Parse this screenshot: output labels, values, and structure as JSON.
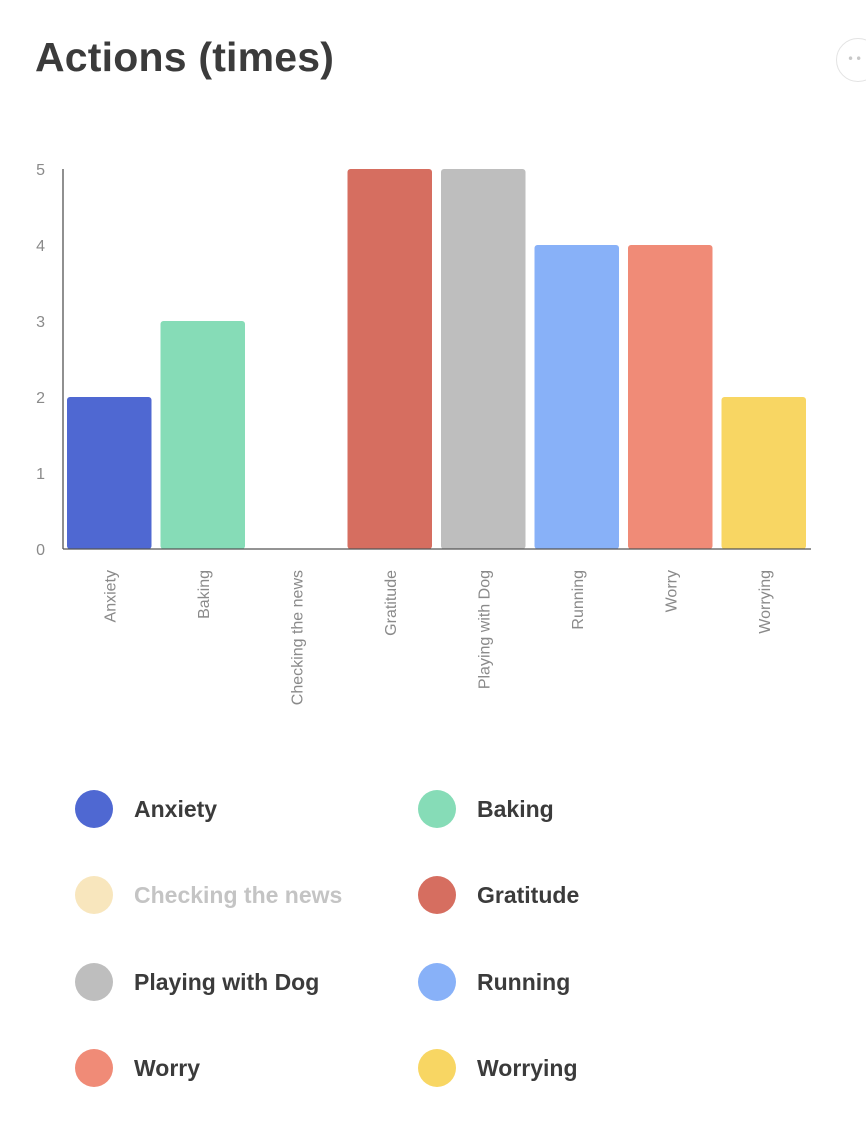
{
  "title": "Actions (times)",
  "more_icon": "ellipsis-icon",
  "chart_data": {
    "type": "bar",
    "title": "Actions (times)",
    "xlabel": "",
    "ylabel": "",
    "ylim": [
      0,
      5
    ],
    "yticks": [
      0,
      1,
      2,
      3,
      4,
      5
    ],
    "grid": false,
    "legend_position": "bottom",
    "categories": [
      "Anxiety",
      "Baking",
      "Checking the news",
      "Gratitude",
      "Playing with Dog",
      "Running",
      "Worry",
      "Worrying"
    ],
    "values": [
      2,
      3,
      0,
      5,
      5,
      4,
      4,
      2
    ],
    "colors": [
      "#4f68d2",
      "#86dcb7",
      "#f8e6bd",
      "#d66e60",
      "#bebebe",
      "#88b1f8",
      "#f08b77",
      "#f8d663"
    ]
  },
  "legend": [
    {
      "label": "Anxiety",
      "color": "#4f68d2",
      "active": true
    },
    {
      "label": "Baking",
      "color": "#86dcb7",
      "active": true
    },
    {
      "label": "Checking the news",
      "color": "#f8e6bd",
      "active": false
    },
    {
      "label": "Gratitude",
      "color": "#d66e60",
      "active": true
    },
    {
      "label": "Playing with Dog",
      "color": "#bebebe",
      "active": true
    },
    {
      "label": "Running",
      "color": "#88b1f8",
      "active": true
    },
    {
      "label": "Worry",
      "color": "#f08b77",
      "active": true
    },
    {
      "label": "Worrying",
      "color": "#f8d663",
      "active": true
    }
  ]
}
